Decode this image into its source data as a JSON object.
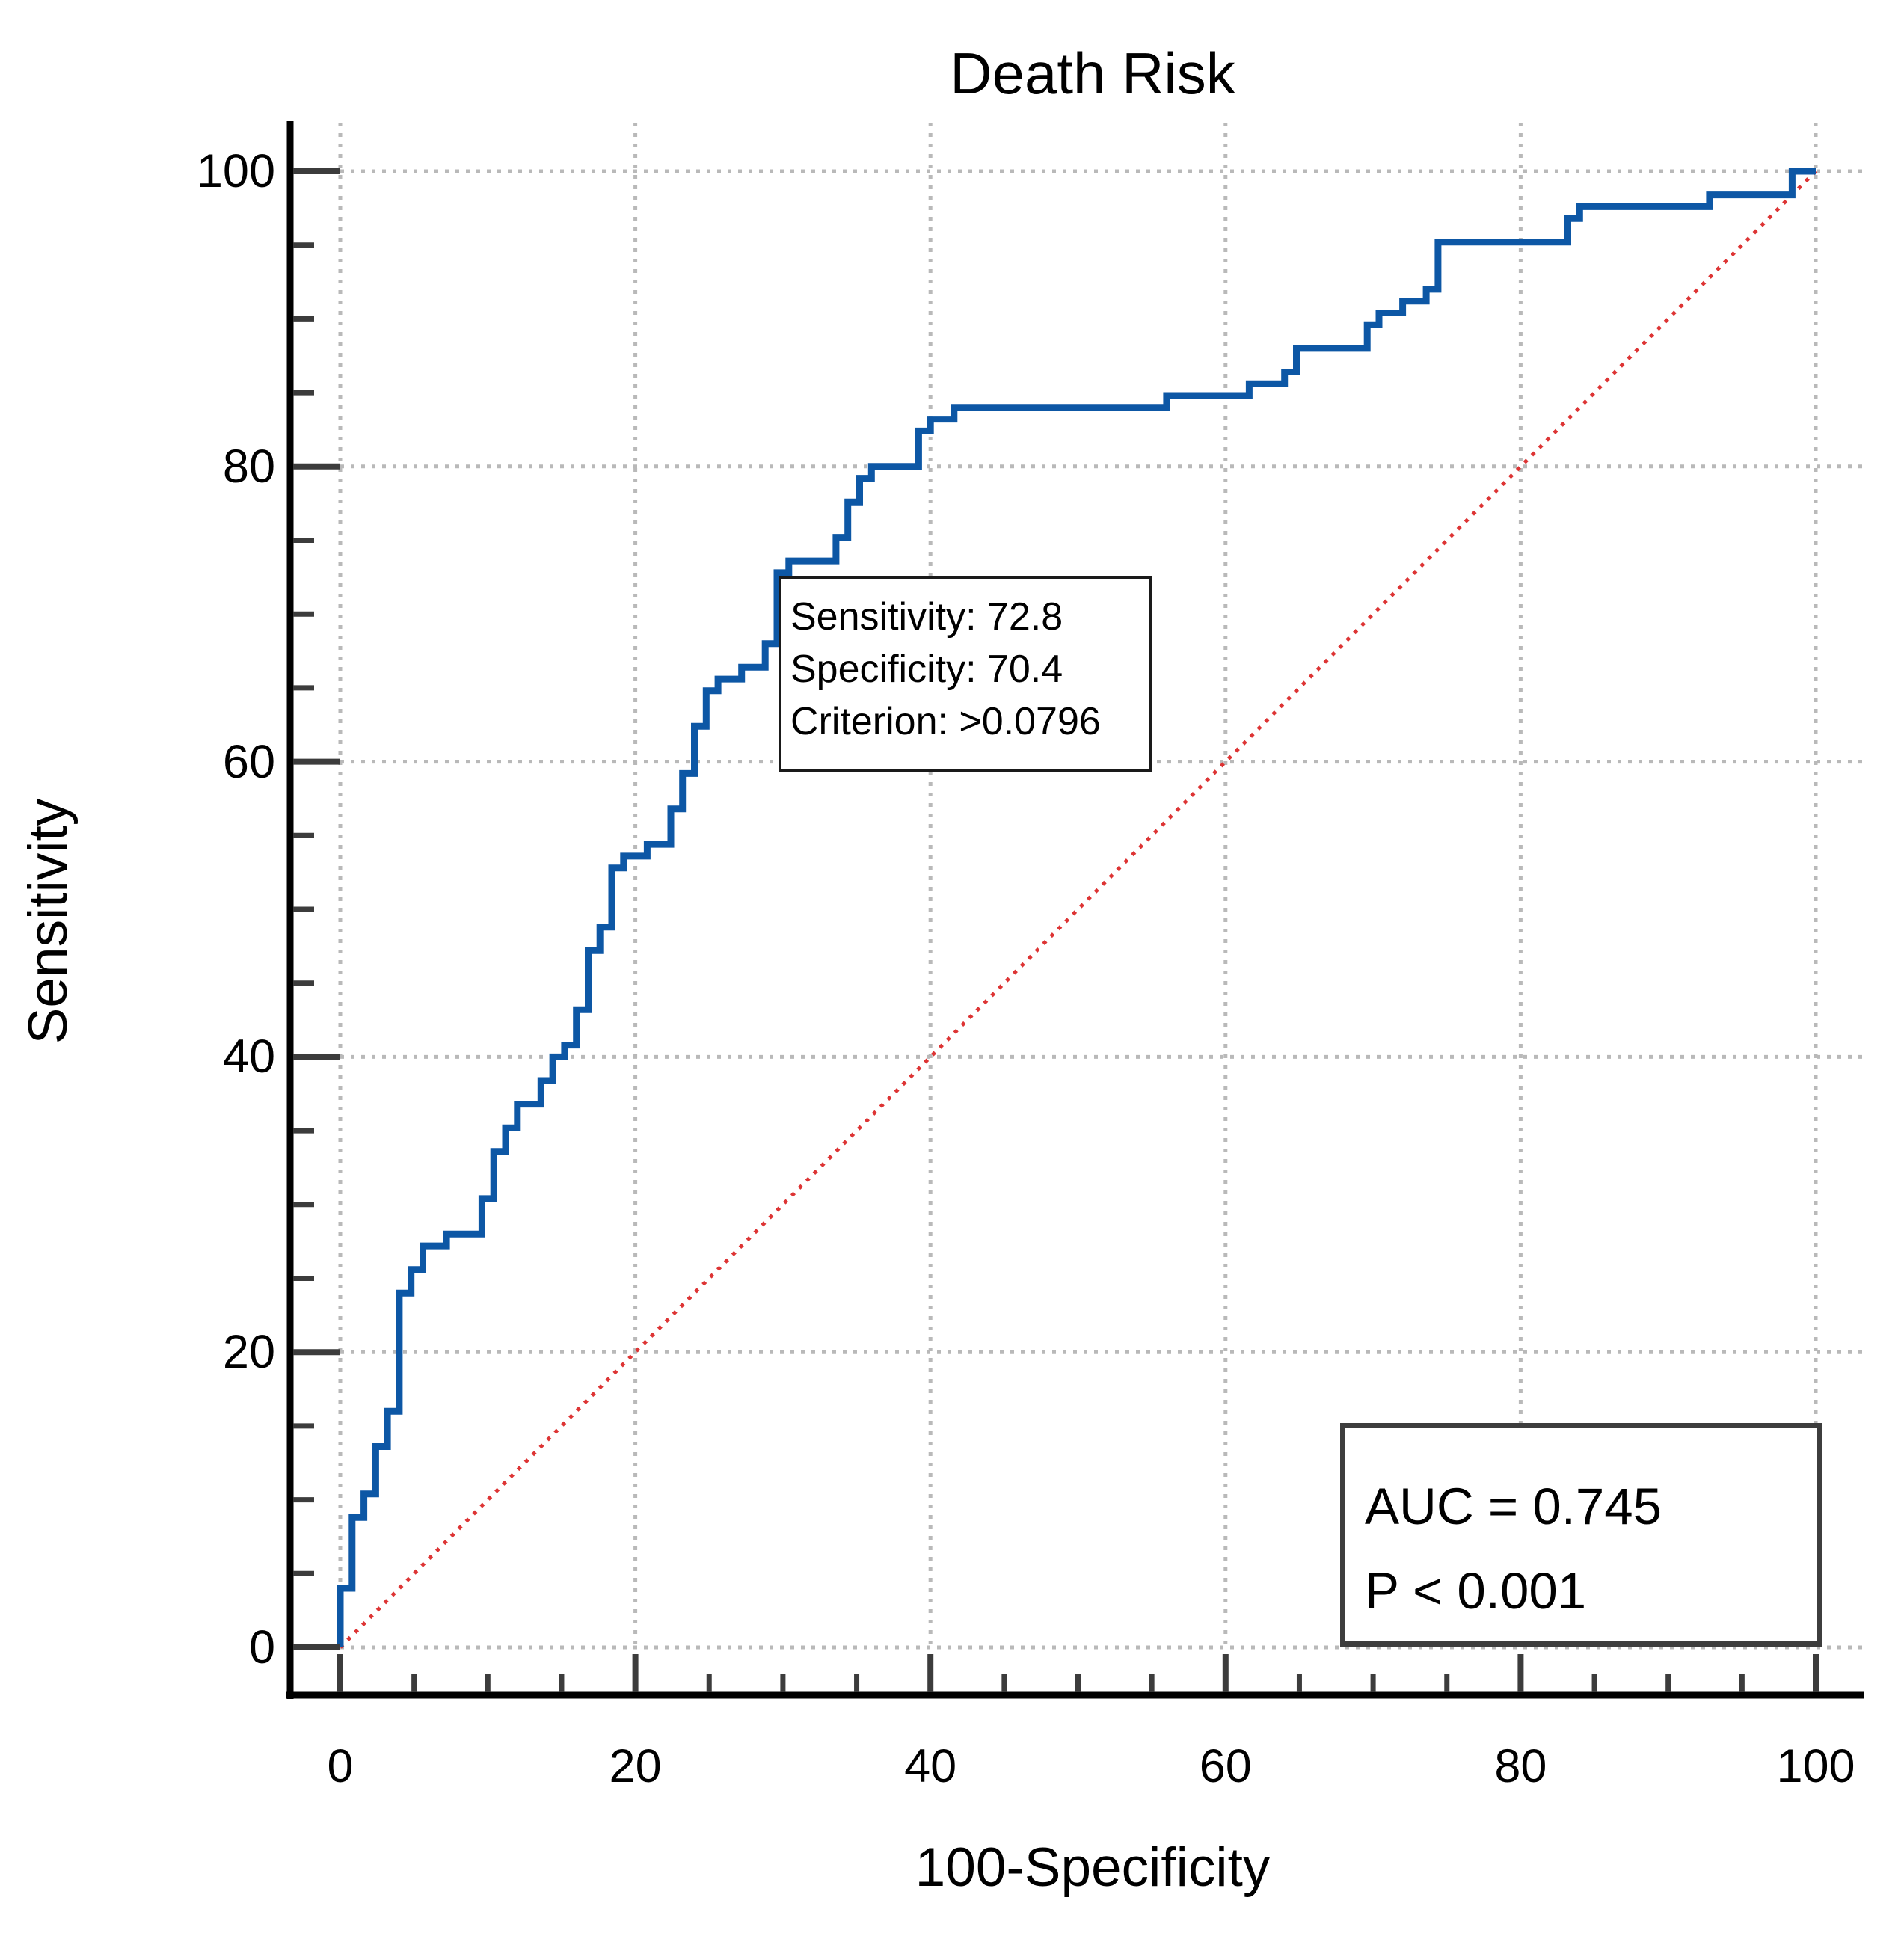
{
  "title": "Death Risk",
  "chart_data": {
    "type": "line",
    "subtype": "roc-step-curve",
    "title": "Death Risk",
    "xlabel": "100-Specificity",
    "ylabel": "Sensitivity",
    "xlim": [
      0,
      100
    ],
    "ylim": [
      0,
      100
    ],
    "x_ticks": [
      0,
      20,
      40,
      60,
      80,
      100
    ],
    "y_ticks": [
      0,
      20,
      40,
      60,
      80,
      100
    ],
    "minor_tick_step": 5,
    "grid": "dotted",
    "grid_color": "#b9b9b9",
    "tick_color": "#3c3c3c",
    "axis_color": "#000000",
    "legend_position": "none",
    "series": [
      {
        "name": "ROC curve",
        "type": "step",
        "color": "#0d57a5",
        "points": [
          [
            0,
            0
          ],
          [
            0,
            4
          ],
          [
            0.8,
            4
          ],
          [
            0.8,
            8.8
          ],
          [
            1.6,
            8.8
          ],
          [
            1.6,
            10.4
          ],
          [
            2.4,
            10.4
          ],
          [
            2.4,
            13.6
          ],
          [
            3.2,
            13.6
          ],
          [
            3.2,
            16
          ],
          [
            4,
            16
          ],
          [
            4,
            24
          ],
          [
            4.8,
            24
          ],
          [
            4.8,
            25.6
          ],
          [
            5.6,
            25.6
          ],
          [
            5.6,
            27.2
          ],
          [
            7.2,
            27.2
          ],
          [
            7.2,
            28
          ],
          [
            9.6,
            28
          ],
          [
            9.6,
            30.4
          ],
          [
            10.4,
            30.4
          ],
          [
            10.4,
            33.6
          ],
          [
            11.2,
            33.6
          ],
          [
            11.2,
            35.2
          ],
          [
            12,
            35.2
          ],
          [
            12,
            36.8
          ],
          [
            13.6,
            36.8
          ],
          [
            13.6,
            38.4
          ],
          [
            14.4,
            38.4
          ],
          [
            14.4,
            40
          ],
          [
            15.2,
            40
          ],
          [
            15.2,
            40.8
          ],
          [
            16,
            40.8
          ],
          [
            16,
            43.2
          ],
          [
            16.8,
            43.2
          ],
          [
            16.8,
            47.2
          ],
          [
            17.6,
            47.2
          ],
          [
            17.6,
            48.8
          ],
          [
            18.4,
            48.8
          ],
          [
            18.4,
            52.8
          ],
          [
            19.2,
            52.8
          ],
          [
            19.2,
            53.6
          ],
          [
            20.8,
            53.6
          ],
          [
            20.8,
            54.4
          ],
          [
            22.4,
            54.4
          ],
          [
            22.4,
            56.8
          ],
          [
            23.2,
            56.8
          ],
          [
            23.2,
            59.2
          ],
          [
            24,
            59.2
          ],
          [
            24,
            62.4
          ],
          [
            24.8,
            62.4
          ],
          [
            24.8,
            64.8
          ],
          [
            25.6,
            64.8
          ],
          [
            25.6,
            65.6
          ],
          [
            27.2,
            65.6
          ],
          [
            27.2,
            66.4
          ],
          [
            28.8,
            66.4
          ],
          [
            28.8,
            68
          ],
          [
            29.6,
            68
          ],
          [
            29.6,
            72.8
          ],
          [
            30.4,
            72.8
          ],
          [
            30.4,
            73.6
          ],
          [
            33.6,
            73.6
          ],
          [
            33.6,
            75.2
          ],
          [
            34.4,
            75.2
          ],
          [
            34.4,
            77.6
          ],
          [
            35.2,
            77.6
          ],
          [
            35.2,
            79.2
          ],
          [
            36,
            79.2
          ],
          [
            36,
            80
          ],
          [
            39.2,
            80
          ],
          [
            39.2,
            82.4
          ],
          [
            40,
            82.4
          ],
          [
            40,
            83.2
          ],
          [
            41.6,
            83.2
          ],
          [
            41.6,
            84
          ],
          [
            56,
            84
          ],
          [
            56,
            84.8
          ],
          [
            61.6,
            84.8
          ],
          [
            61.6,
            85.6
          ],
          [
            64,
            85.6
          ],
          [
            64,
            86.4
          ],
          [
            64.8,
            86.4
          ],
          [
            64.8,
            88
          ],
          [
            69.6,
            88
          ],
          [
            69.6,
            89.6
          ],
          [
            70.4,
            89.6
          ],
          [
            70.4,
            90.4
          ],
          [
            72,
            90.4
          ],
          [
            72,
            91.2
          ],
          [
            73.6,
            91.2
          ],
          [
            73.6,
            92
          ],
          [
            74.4,
            92
          ],
          [
            74.4,
            95.2
          ],
          [
            83.2,
            95.2
          ],
          [
            83.2,
            96.8
          ],
          [
            84,
            96.8
          ],
          [
            84,
            97.6
          ],
          [
            92.8,
            97.6
          ],
          [
            92.8,
            98.4
          ],
          [
            98.4,
            98.4
          ],
          [
            98.4,
            100
          ],
          [
            100,
            100
          ]
        ]
      },
      {
        "name": "reference diagonal",
        "type": "line",
        "style": "dotted",
        "color": "#dd3434",
        "points": [
          [
            0,
            0
          ],
          [
            100,
            100
          ]
        ]
      }
    ]
  },
  "annotation_box": {
    "sensitivity": 72.8,
    "specificity": 70.4,
    "lines": [
      "Sensitivity: 72.8",
      "Specificity: 70.4",
      "Criterion: >0.0796"
    ]
  },
  "auc_box": {
    "auc": 0.745,
    "lines": [
      "AUC = 0.745",
      "P < 0.001"
    ]
  }
}
